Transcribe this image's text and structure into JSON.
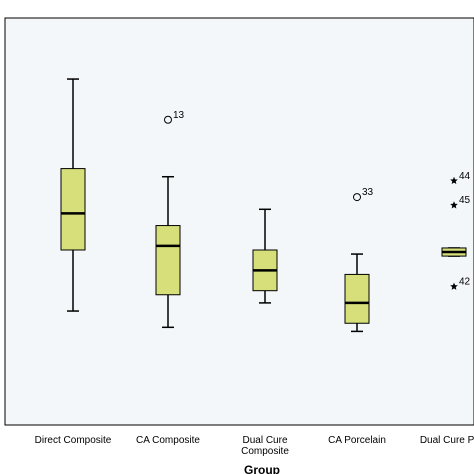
{
  "chart_data": {
    "type": "boxplot",
    "xlabel": "Group",
    "ylabel": "",
    "ylim": [
      0,
      100
    ],
    "box_fill": "#d6df7a",
    "outline_color": "#000000",
    "plot_background": "#f3f7f9",
    "groups": [
      {
        "label": "Direct Composite",
        "whisker_low": 28,
        "q1": 43,
        "median": 52,
        "q3": 63,
        "whisker_high": 85,
        "outliers": []
      },
      {
        "label": "CA Composite",
        "whisker_low": 24,
        "q1": 32,
        "median": 44,
        "q3": 49,
        "whisker_high": 61,
        "outliers": [
          {
            "value": 75,
            "marker": "circle",
            "label": "13"
          }
        ]
      },
      {
        "label": "Dual Cure Composite",
        "label_lines": [
          "Dual Cure",
          "Composite"
        ],
        "whisker_low": 30,
        "q1": 33,
        "median": 38,
        "q3": 43,
        "whisker_high": 53,
        "outliers": []
      },
      {
        "label": "CA Porcelain",
        "whisker_low": 23,
        "q1": 25,
        "median": 30,
        "q3": 37,
        "whisker_high": 42,
        "outliers": [
          {
            "value": 56,
            "marker": "circle",
            "label": "33"
          }
        ]
      },
      {
        "label": "Dual Cure Porcelain",
        "label_lines": [
          "Dual Cure Porc"
        ],
        "whisker_low": 41.5,
        "q1": 41.5,
        "median": 42.5,
        "q3": 43.5,
        "whisker_high": 43.5,
        "outliers": [
          {
            "value": 60,
            "marker": "star",
            "label": "44"
          },
          {
            "value": 54,
            "marker": "star",
            "label": "45"
          },
          {
            "value": 34,
            "marker": "star",
            "label": "42"
          }
        ]
      }
    ]
  }
}
